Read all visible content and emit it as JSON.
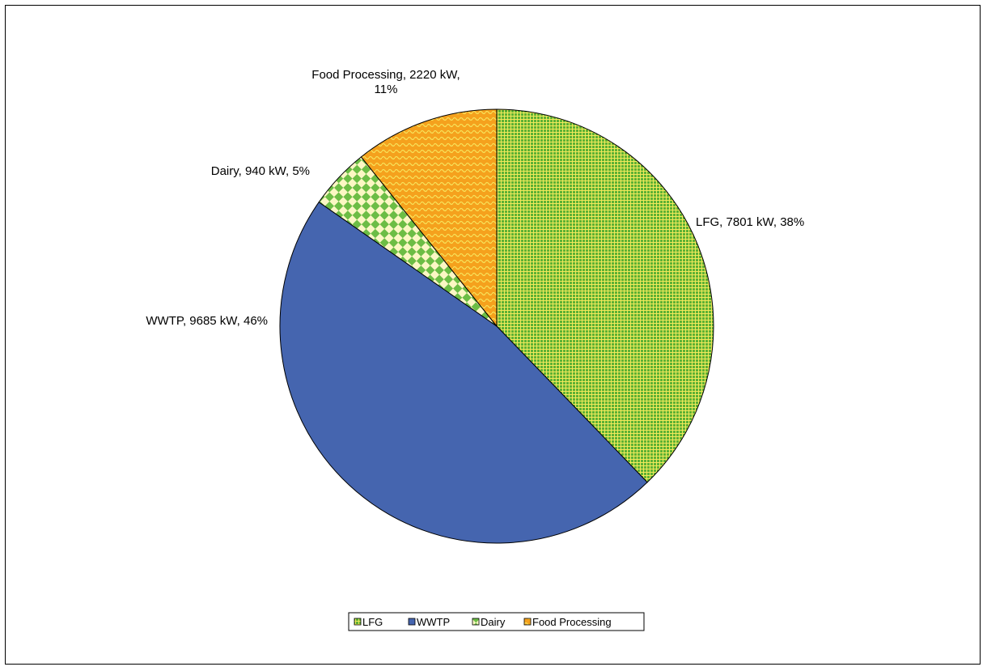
{
  "chart_data": {
    "type": "pie",
    "unit": "kW",
    "slices": [
      {
        "name": "LFG",
        "value": 7801,
        "percent": 38,
        "label_line1": "LFG, 7801  kW, 38%",
        "label_line2": "",
        "color": "#5db134",
        "pattern": "small-grid"
      },
      {
        "name": "WWTP",
        "value": 9685,
        "percent": 46,
        "label_line1": "WWTP,  9685  kW,  46%",
        "label_line2": "",
        "color": "#4565af",
        "pattern": "solid"
      },
      {
        "name": "Dairy",
        "value": 940,
        "percent": 5,
        "label_line1": "Dairy, 940 kW,  5%",
        "label_line2": "",
        "color": "#6cbd45",
        "pattern": "checker"
      },
      {
        "name": "Food Processing",
        "value": 2220,
        "percent": 11,
        "label_line1": "Food Processing, 2220 kW,",
        "label_line2": "11%",
        "color": "#f5a11d",
        "pattern": "wave"
      }
    ],
    "legend": {
      "placement": "bottom",
      "entries": [
        "LFG",
        "WWTP",
        "Dairy",
        "Food Processing"
      ]
    }
  }
}
